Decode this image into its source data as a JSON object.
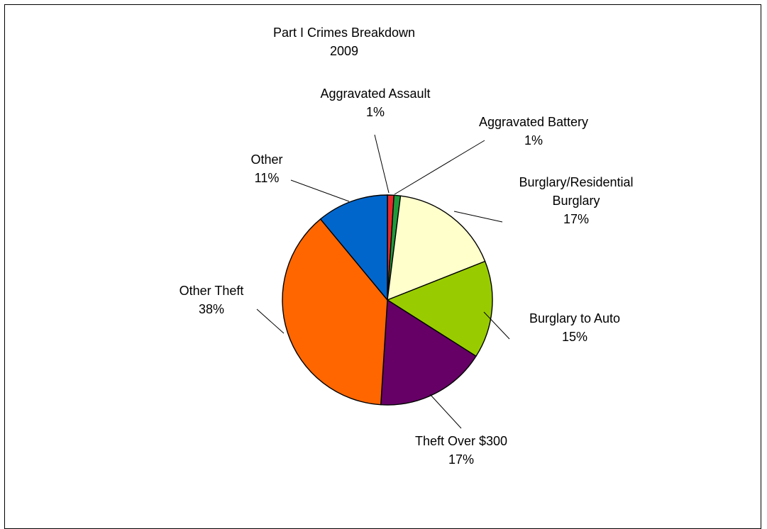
{
  "chart_data": {
    "type": "pie",
    "title": "Part I Crimes Breakdown",
    "subtitle": "2009",
    "slices": [
      {
        "label": "Aggravated Assault",
        "value": 1,
        "value_label": "1%",
        "color": "#e8282b"
      },
      {
        "label": "Aggravated Battery",
        "value": 1,
        "value_label": "1%",
        "color": "#1f9a3b"
      },
      {
        "label": "Burglary/Residential Burglary",
        "label_lines": [
          "Burglary/Residential",
          "Burglary"
        ],
        "value": 17,
        "value_label": "17%",
        "color": "#ffffcc"
      },
      {
        "label": "Burglary to Auto",
        "value": 15,
        "value_label": "15%",
        "color": "#99cc00"
      },
      {
        "label": "Theft Over $300",
        "value": 17,
        "value_label": "17%",
        "color": "#660066"
      },
      {
        "label": "Other Theft",
        "value": 38,
        "value_label": "38%",
        "color": "#ff6600"
      },
      {
        "label": "Other",
        "value": 11,
        "value_label": "11%",
        "color": "#0066cc"
      }
    ],
    "legend": "none"
  }
}
